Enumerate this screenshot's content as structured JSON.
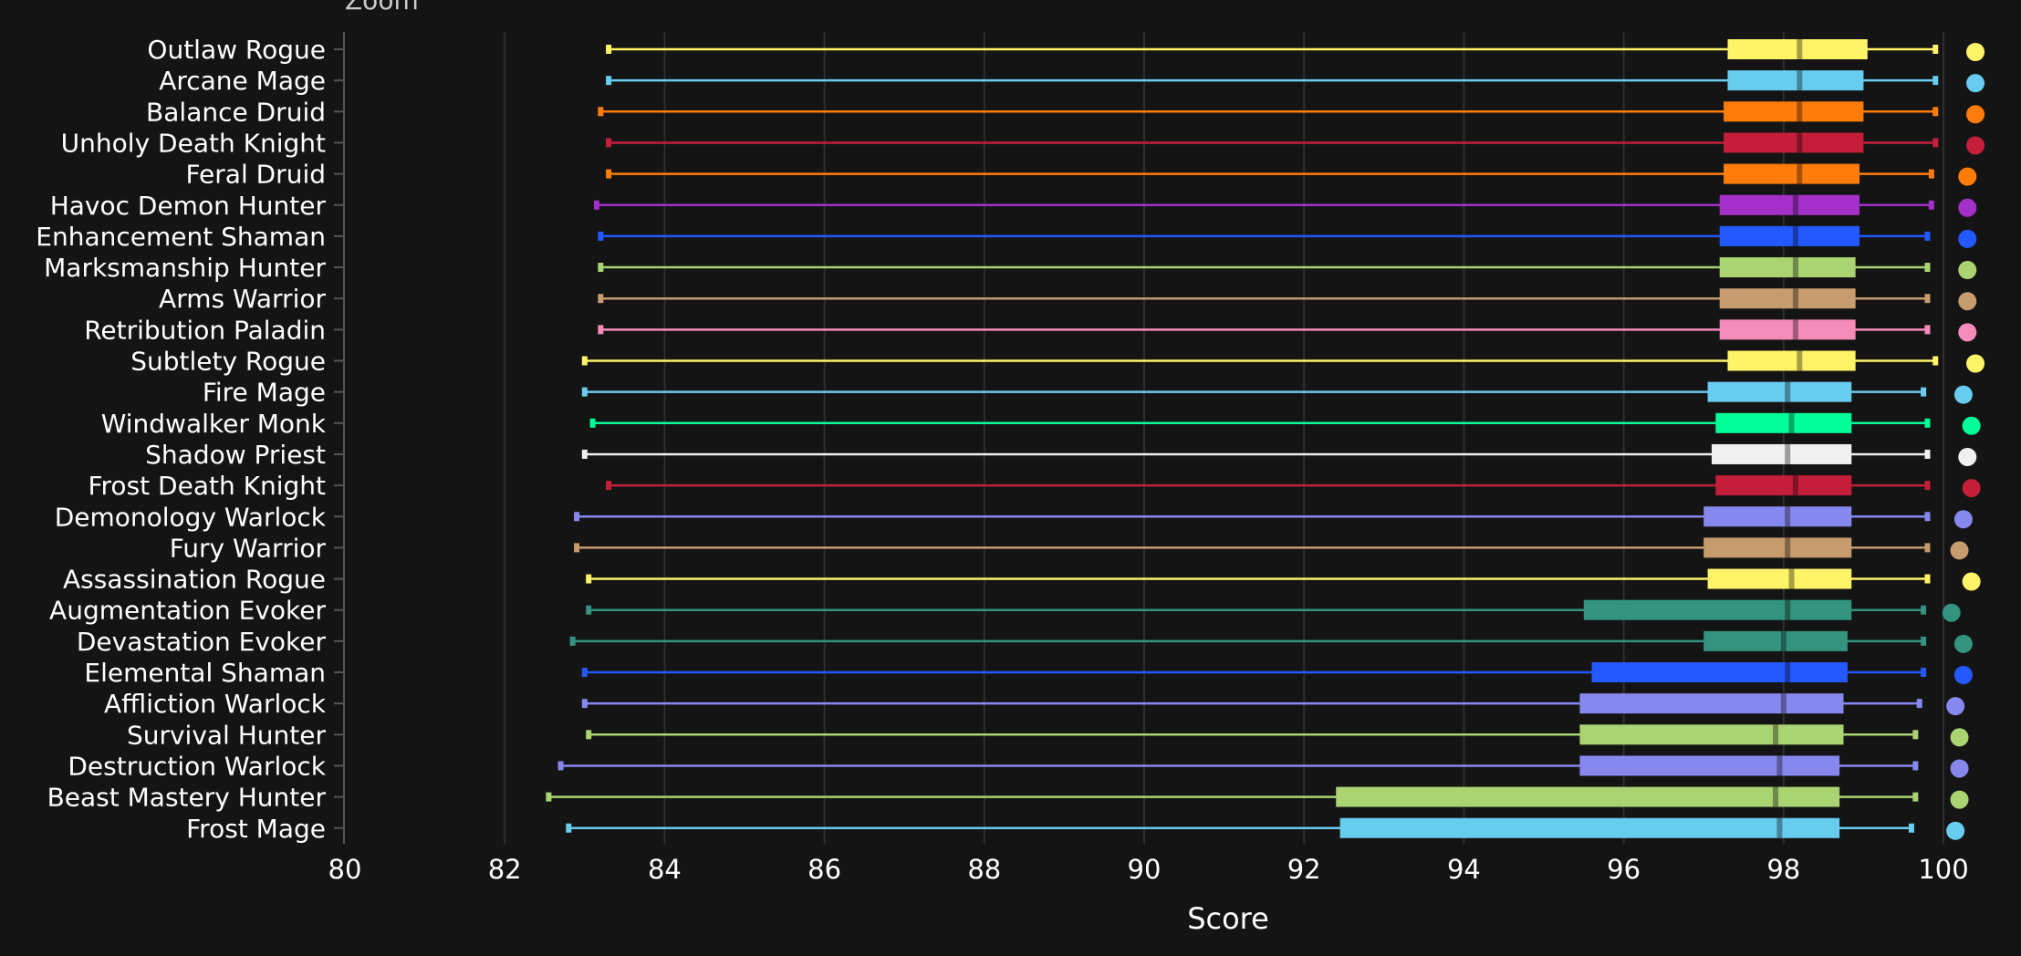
{
  "zoom_label": "Zoom",
  "chart_data": {
    "type": "boxplot",
    "orientation": "horizontal",
    "xlabel": "Score",
    "xlim": [
      80,
      100
    ],
    "xticks": [
      80,
      82,
      84,
      86,
      88,
      90,
      92,
      94,
      96,
      98,
      100
    ],
    "grid": true,
    "series": [
      {
        "name": "Outlaw Rogue",
        "color": "#FFF468",
        "min": 83.3,
        "q1": 97.3,
        "median": 98.2,
        "q3": 99.05,
        "max": 99.9,
        "point": 100.4
      },
      {
        "name": "Arcane Mage",
        "color": "#68CCEF",
        "min": 83.3,
        "q1": 97.3,
        "median": 98.2,
        "q3": 99.0,
        "max": 99.9,
        "point": 100.4
      },
      {
        "name": "Balance Druid",
        "color": "#FF7C0A",
        "min": 83.2,
        "q1": 97.25,
        "median": 98.2,
        "q3": 99.0,
        "max": 99.9,
        "point": 100.4
      },
      {
        "name": "Unholy Death Knight",
        "color": "#C41E3A",
        "min": 83.3,
        "q1": 97.25,
        "median": 98.2,
        "q3": 99.0,
        "max": 99.9,
        "point": 100.4
      },
      {
        "name": "Feral Druid",
        "color": "#FF7C0A",
        "min": 83.3,
        "q1": 97.25,
        "median": 98.2,
        "q3": 98.95,
        "max": 99.85,
        "point": 100.3
      },
      {
        "name": "Havoc Demon Hunter",
        "color": "#A330C9",
        "min": 83.15,
        "q1": 97.2,
        "median": 98.15,
        "q3": 98.95,
        "max": 99.85,
        "point": 100.3
      },
      {
        "name": "Enhancement Shaman",
        "color": "#2459FF",
        "min": 83.2,
        "q1": 97.2,
        "median": 98.15,
        "q3": 98.95,
        "max": 99.8,
        "point": 100.3
      },
      {
        "name": "Marksmanship Hunter",
        "color": "#AAD372",
        "min": 83.2,
        "q1": 97.2,
        "median": 98.15,
        "q3": 98.9,
        "max": 99.8,
        "point": 100.3
      },
      {
        "name": "Arms Warrior",
        "color": "#C69B6D",
        "min": 83.2,
        "q1": 97.2,
        "median": 98.15,
        "q3": 98.9,
        "max": 99.8,
        "point": 100.3
      },
      {
        "name": "Retribution Paladin",
        "color": "#F48CBA",
        "min": 83.2,
        "q1": 97.2,
        "median": 98.15,
        "q3": 98.9,
        "max": 99.8,
        "point": 100.3
      },
      {
        "name": "Subtlety Rogue",
        "color": "#FFF468",
        "min": 83.0,
        "q1": 97.3,
        "median": 98.2,
        "q3": 98.9,
        "max": 99.9,
        "point": 100.4
      },
      {
        "name": "Fire Mage",
        "color": "#68CCEF",
        "min": 83.0,
        "q1": 97.05,
        "median": 98.05,
        "q3": 98.85,
        "max": 99.75,
        "point": 100.25
      },
      {
        "name": "Windwalker Monk",
        "color": "#00FF98",
        "min": 83.1,
        "q1": 97.15,
        "median": 98.1,
        "q3": 98.85,
        "max": 99.8,
        "point": 100.35
      },
      {
        "name": "Shadow Priest",
        "color": "#F0F0F0",
        "min": 83.0,
        "q1": 97.1,
        "median": 98.05,
        "q3": 98.85,
        "max": 99.8,
        "point": 100.3
      },
      {
        "name": "Frost Death Knight",
        "color": "#C41E3A",
        "min": 83.3,
        "q1": 97.15,
        "median": 98.15,
        "q3": 98.85,
        "max": 99.8,
        "point": 100.35
      },
      {
        "name": "Demonology Warlock",
        "color": "#8788EE",
        "min": 82.9,
        "q1": 97.0,
        "median": 98.05,
        "q3": 98.85,
        "max": 99.8,
        "point": 100.25
      },
      {
        "name": "Fury Warrior",
        "color": "#C69B6D",
        "min": 82.9,
        "q1": 97.0,
        "median": 98.05,
        "q3": 98.85,
        "max": 99.8,
        "point": 100.2
      },
      {
        "name": "Assassination Rogue",
        "color": "#FFF468",
        "min": 83.05,
        "q1": 97.05,
        "median": 98.1,
        "q3": 98.85,
        "max": 99.8,
        "point": 100.35
      },
      {
        "name": "Augmentation Evoker",
        "color": "#33937F",
        "min": 83.05,
        "q1": 95.5,
        "median": 98.05,
        "q3": 98.85,
        "max": 99.75,
        "point": 100.1
      },
      {
        "name": "Devastation Evoker",
        "color": "#33937F",
        "min": 82.85,
        "q1": 97.0,
        "median": 98.0,
        "q3": 98.8,
        "max": 99.75,
        "point": 100.25
      },
      {
        "name": "Elemental Shaman",
        "color": "#2459FF",
        "min": 83.0,
        "q1": 95.6,
        "median": 98.05,
        "q3": 98.8,
        "max": 99.75,
        "point": 100.25
      },
      {
        "name": "Affliction Warlock",
        "color": "#8788EE",
        "min": 83.0,
        "q1": 95.45,
        "median": 98.0,
        "q3": 98.75,
        "max": 99.7,
        "point": 100.15
      },
      {
        "name": "Survival Hunter",
        "color": "#AAD372",
        "min": 83.05,
        "q1": 95.45,
        "median": 97.9,
        "q3": 98.75,
        "max": 99.65,
        "point": 100.2
      },
      {
        "name": "Destruction Warlock",
        "color": "#8788EE",
        "min": 82.7,
        "q1": 95.45,
        "median": 97.95,
        "q3": 98.7,
        "max": 99.65,
        "point": 100.2
      },
      {
        "name": "Beast Mastery Hunter",
        "color": "#AAD372",
        "min": 82.55,
        "q1": 92.4,
        "median": 97.9,
        "q3": 98.7,
        "max": 99.65,
        "point": 100.2
      },
      {
        "name": "Frost Mage",
        "color": "#68CCEF",
        "min": 82.8,
        "q1": 92.45,
        "median": 97.95,
        "q3": 98.7,
        "max": 99.6,
        "point": 100.15
      }
    ]
  }
}
